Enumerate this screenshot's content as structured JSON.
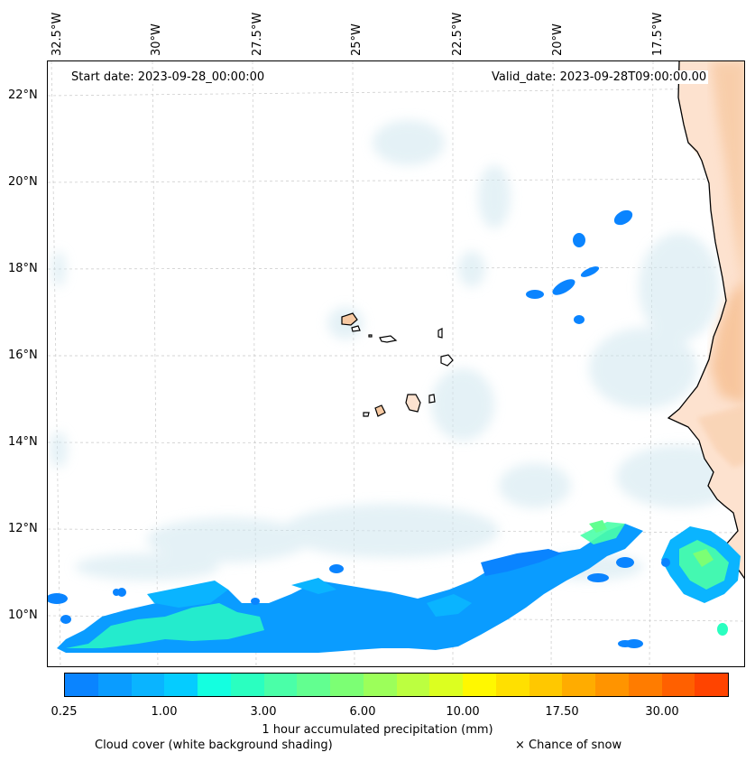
{
  "header": {
    "start_date": "Start date: 2023-09-28_00:00:00",
    "valid_date": "Valid_date: 2023-09-28T09:00:00.00"
  },
  "axes": {
    "lon_labels": [
      "32.5°W",
      "30°W",
      "27.5°W",
      "25°W",
      "22.5°W",
      "20°W",
      "17.5°W"
    ],
    "lat_labels": [
      "22°N",
      "20°N",
      "18°N",
      "16°N",
      "14°N",
      "12°N",
      "10°N"
    ],
    "grid": true
  },
  "colorbar": {
    "colors": [
      "#0a84ff",
      "#0a9cff",
      "#0ab4ff",
      "#05ccff",
      "#14ffe0",
      "#2affc0",
      "#4affa8",
      "#62ff90",
      "#7cff74",
      "#9cff5a",
      "#bcff40",
      "#dcff20",
      "#fff800",
      "#ffe000",
      "#ffc800",
      "#ffac00",
      "#ff9400",
      "#ff7c00",
      "#ff6000",
      "#ff4400"
    ],
    "tick_labels": [
      "0.25",
      "1.00",
      "3.00",
      "6.00",
      "10.00",
      "17.50",
      "30.00"
    ],
    "title": "1 hour accumulated precipitation (mm)"
  },
  "legend": {
    "cloud_cover": "Cloud cover (white background shading)",
    "snow": "× Chance of snow"
  }
}
